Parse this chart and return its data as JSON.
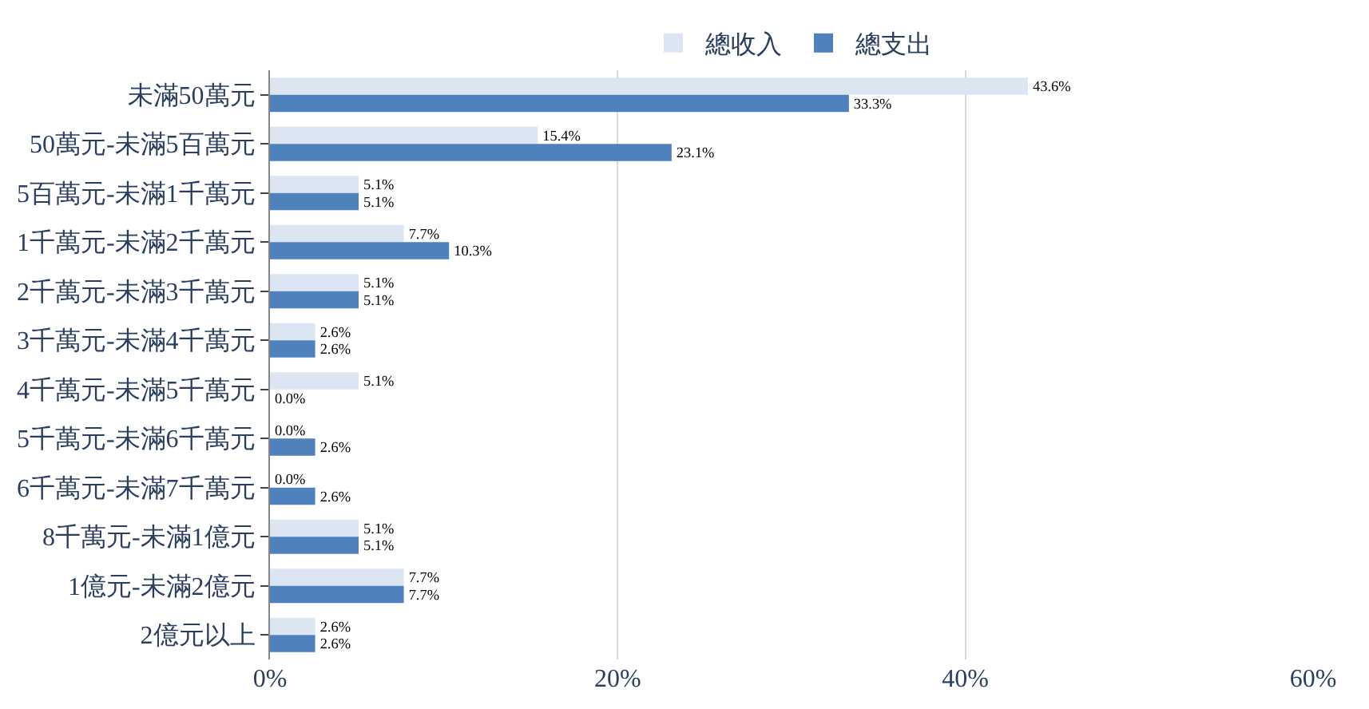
{
  "chart_data": {
    "type": "bar",
    "orientation": "horizontal",
    "categories": [
      "未滿50萬元",
      "50萬元-未滿5百萬元",
      "5百萬元-未滿1千萬元",
      "1千萬元-未滿2千萬元",
      "2千萬元-未滿3千萬元",
      "3千萬元-未滿4千萬元",
      "4千萬元-未滿5千萬元",
      "5千萬元-未滿6千萬元",
      "6千萬元-未滿7千萬元",
      "8千萬元-未滿1億元",
      "1億元-未滿2億元",
      "2億元以上"
    ],
    "series": [
      {
        "name": "總收入",
        "color": "#dce6f2",
        "values": [
          43.6,
          15.4,
          5.1,
          7.7,
          5.1,
          2.6,
          5.1,
          0.0,
          0.0,
          5.1,
          7.7,
          2.6
        ],
        "value_labels": [
          "43.6%",
          "15.4%",
          "5.1%",
          "7.7%",
          "5.1%",
          "2.6%",
          "5.1%",
          "0.0%",
          "0.0%",
          "5.1%",
          "7.7%",
          "2.6%"
        ]
      },
      {
        "name": "總支出",
        "color": "#4f81bd",
        "values": [
          33.3,
          23.1,
          5.1,
          10.3,
          5.1,
          2.6,
          0.0,
          2.6,
          2.6,
          5.1,
          7.7,
          2.6
        ],
        "value_labels": [
          "33.3%",
          "23.1%",
          "5.1%",
          "10.3%",
          "5.1%",
          "2.6%",
          "0.0%",
          "2.6%",
          "2.6%",
          "5.1%",
          "7.7%",
          "2.6%"
        ]
      }
    ],
    "xlim": [
      0,
      60
    ],
    "xticks": [
      {
        "value": 0,
        "label": "0%"
      },
      {
        "value": 20,
        "label": "20%"
      },
      {
        "value": 40,
        "label": "40%"
      },
      {
        "value": 60,
        "label": "60%"
      }
    ],
    "grid": "x",
    "legend": "top"
  }
}
